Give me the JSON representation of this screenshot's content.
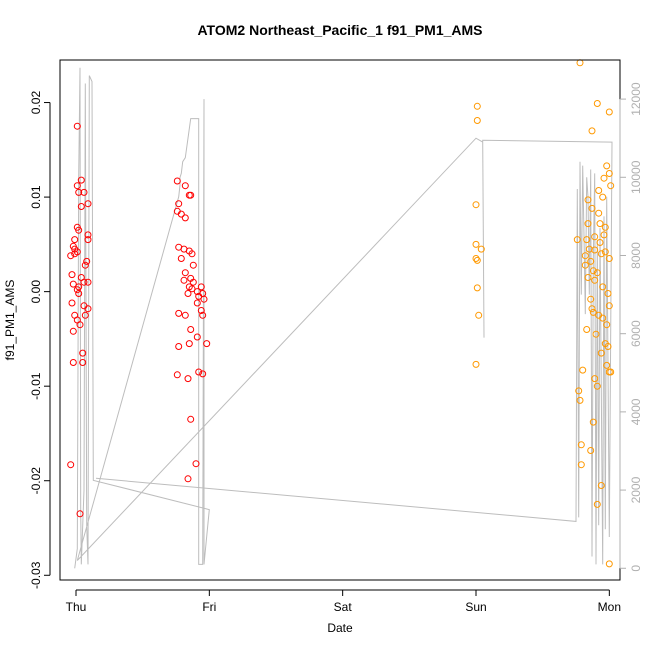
{
  "chart_data": {
    "type": "scatter",
    "title": "ATOM2 Northeast_Pacific_1 f91_PM1_AMS",
    "xlabel": "Date",
    "ylabel": "f91_PM1_AMS",
    "x_ticks": [
      "Thu",
      "Fri",
      "Sat",
      "Sun",
      "Mon"
    ],
    "y_ticks": [
      "-0.03",
      "-0.02",
      "-0.01",
      "0.00",
      "0.01",
      "0.02"
    ],
    "y2_ticks": [
      "0",
      "2000",
      "4000",
      "6000",
      "8000",
      "10000",
      "12000"
    ],
    "xlim": [
      -0.12,
      4.08
    ],
    "ylim": [
      -0.0305,
      0.0245
    ],
    "y2lim": [
      -300,
      13000
    ],
    "grid": false,
    "colors": {
      "red": "#ff0000",
      "orange": "#ff9900",
      "line": "#bdbdbd"
    },
    "series": [
      {
        "color": "#ff0000",
        "points": [
          [
            0.01,
            0.0175
          ],
          [
            0.01,
            0.0112
          ],
          [
            0.04,
            0.0118
          ],
          [
            0.06,
            0.0105
          ],
          [
            0.02,
            0.0105
          ],
          [
            0.09,
            0.0093
          ],
          [
            0.04,
            0.009
          ],
          [
            0.01,
            0.0068
          ],
          [
            0.02,
            0.0065
          ],
          [
            0.09,
            0.006
          ],
          [
            0.09,
            0.0055
          ],
          [
            -0.01,
            0.0055
          ],
          [
            -0.02,
            0.0048
          ],
          [
            -0.01,
            0.0045
          ],
          [
            0.01,
            0.0042
          ],
          [
            -0.01,
            0.004
          ],
          [
            -0.04,
            0.0038
          ],
          [
            0.08,
            0.0032
          ],
          [
            0.07,
            0.0028
          ],
          [
            -0.03,
            0.0018
          ],
          [
            0.04,
            0.0015
          ],
          [
            0.09,
            0.001
          ],
          [
            0.06,
            0.001
          ],
          [
            -0.02,
            0.0008
          ],
          [
            0.02,
            0.0005
          ],
          [
            0.01,
            0.0002
          ],
          [
            0.02,
            -0.0002
          ],
          [
            -0.03,
            -0.0012
          ],
          [
            0.06,
            -0.0015
          ],
          [
            0.09,
            -0.0018
          ],
          [
            0.07,
            -0.0025
          ],
          [
            -0.01,
            -0.0025
          ],
          [
            0.01,
            -0.003
          ],
          [
            0.03,
            -0.0035
          ],
          [
            -0.02,
            -0.0042
          ],
          [
            0.05,
            -0.0065
          ],
          [
            -0.02,
            -0.0075
          ],
          [
            0.05,
            -0.0075
          ],
          [
            -0.04,
            -0.0183
          ],
          [
            0.03,
            -0.0235
          ],
          [
            0.76,
            0.0117
          ],
          [
            0.82,
            0.0112
          ],
          [
            0.85,
            0.0102
          ],
          [
            0.86,
            0.0102
          ],
          [
            0.77,
            0.0093
          ],
          [
            0.76,
            0.0085
          ],
          [
            0.79,
            0.0082
          ],
          [
            0.82,
            0.0078
          ],
          [
            0.77,
            0.0047
          ],
          [
            0.81,
            0.0045
          ],
          [
            0.85,
            0.0043
          ],
          [
            0.87,
            0.004
          ],
          [
            0.79,
            0.0035
          ],
          [
            0.88,
            0.0028
          ],
          [
            0.82,
            0.002
          ],
          [
            0.86,
            0.0014
          ],
          [
            0.81,
            0.0012
          ],
          [
            0.88,
            0.001
          ],
          [
            0.85,
            0.0005
          ],
          [
            0.94,
            0.0005
          ],
          [
            0.87,
            0.0003
          ],
          [
            0.91,
            0.0
          ],
          [
            0.84,
            -0.0002
          ],
          [
            0.95,
            -0.0002
          ],
          [
            0.92,
            -0.0005
          ],
          [
            0.96,
            -0.0008
          ],
          [
            0.91,
            -0.0012
          ],
          [
            0.94,
            -0.002
          ],
          [
            0.77,
            -0.0023
          ],
          [
            0.82,
            -0.0025
          ],
          [
            0.95,
            -0.0025
          ],
          [
            0.86,
            -0.004
          ],
          [
            0.91,
            -0.0048
          ],
          [
            0.85,
            -0.0055
          ],
          [
            0.77,
            -0.0058
          ],
          [
            0.98,
            -0.0055
          ],
          [
            0.92,
            -0.0085
          ],
          [
            0.95,
            -0.0087
          ],
          [
            0.76,
            -0.0088
          ],
          [
            0.84,
            -0.0092
          ],
          [
            0.86,
            -0.0135
          ],
          [
            0.9,
            -0.0182
          ],
          [
            0.84,
            -0.0198
          ]
        ]
      },
      {
        "color": "#ff9900",
        "points": [
          [
            3.01,
            0.0196
          ],
          [
            3.01,
            0.0181
          ],
          [
            3.0,
            0.0092
          ],
          [
            3.0,
            0.005
          ],
          [
            3.04,
            0.0045
          ],
          [
            3.0,
            0.0035
          ],
          [
            3.01,
            0.0033
          ],
          [
            3.01,
            0.0004
          ],
          [
            3.02,
            -0.0025
          ],
          [
            3.0,
            -0.0077
          ],
          [
            3.78,
            0.0242
          ],
          [
            3.91,
            0.0199
          ],
          [
            4.0,
            0.019
          ],
          [
            3.87,
            0.017
          ],
          [
            3.98,
            0.0133
          ],
          [
            4.0,
            0.0125
          ],
          [
            3.96,
            0.012
          ],
          [
            4.01,
            0.0112
          ],
          [
            3.92,
            0.0107
          ],
          [
            3.95,
            0.01
          ],
          [
            3.84,
            0.0097
          ],
          [
            3.87,
            0.0088
          ],
          [
            3.92,
            0.0083
          ],
          [
            3.84,
            0.0072
          ],
          [
            3.93,
            0.0072
          ],
          [
            3.97,
            0.0068
          ],
          [
            3.89,
            0.0058
          ],
          [
            3.76,
            0.0055
          ],
          [
            3.83,
            0.0055
          ],
          [
            3.93,
            0.0052
          ],
          [
            3.96,
            0.006
          ],
          [
            3.85,
            0.0045
          ],
          [
            3.89,
            0.0044
          ],
          [
            3.97,
            0.0042
          ],
          [
            3.82,
            0.0038
          ],
          [
            3.94,
            0.004
          ],
          [
            4.0,
            0.0035
          ],
          [
            3.86,
            0.0032
          ],
          [
            3.82,
            0.0028
          ],
          [
            3.88,
            0.0022
          ],
          [
            3.91,
            0.002
          ],
          [
            3.84,
            0.0015
          ],
          [
            3.89,
            0.0012
          ],
          [
            3.95,
            0.0005
          ],
          [
            3.99,
            -0.0002
          ],
          [
            3.86,
            -0.0008
          ],
          [
            4.0,
            -0.0015
          ],
          [
            3.87,
            -0.0018
          ],
          [
            3.88,
            -0.0022
          ],
          [
            3.92,
            -0.0025
          ],
          [
            3.95,
            -0.0028
          ],
          [
            3.98,
            -0.0035
          ],
          [
            3.83,
            -0.004
          ],
          [
            3.9,
            -0.0045
          ],
          [
            3.97,
            -0.0055
          ],
          [
            3.99,
            -0.0058
          ],
          [
            3.94,
            -0.0065
          ],
          [
            3.98,
            -0.0078
          ],
          [
            4.0,
            -0.0085
          ],
          [
            4.01,
            -0.0085
          ],
          [
            3.8,
            -0.0083
          ],
          [
            3.89,
            -0.0092
          ],
          [
            3.91,
            -0.01
          ],
          [
            3.77,
            -0.0105
          ],
          [
            3.78,
            -0.0115
          ],
          [
            3.88,
            -0.0138
          ],
          [
            3.79,
            -0.0162
          ],
          [
            3.86,
            -0.0168
          ],
          [
            3.79,
            -0.0183
          ],
          [
            3.94,
            -0.0205
          ],
          [
            3.91,
            -0.0225
          ],
          [
            4.0,
            -0.0288
          ]
        ]
      }
    ],
    "secondary_line": {
      "color": "#bdbdbd",
      "points": [
        [
          -0.01,
          0
        ],
        [
          0.01,
          500
        ],
        [
          0.02,
          10000
        ],
        [
          0.03,
          12800
        ],
        [
          0.035,
          1500
        ],
        [
          0.04,
          100
        ],
        [
          0.06,
          2000
        ],
        [
          0.07,
          12400
        ],
        [
          0.08,
          1100
        ],
        [
          0.09,
          100
        ],
        [
          0.1,
          12600
        ],
        [
          0.12,
          12450
        ],
        [
          0.13,
          2250
        ],
        [
          1.0,
          1500
        ],
        [
          0.96,
          100
        ],
        [
          0.96,
          12000
        ],
        [
          0.95,
          100
        ],
        [
          0.92,
          100
        ],
        [
          0.92,
          11500
        ],
        [
          0.9,
          11500
        ],
        [
          0.86,
          11500
        ],
        [
          0.84,
          11000
        ],
        [
          0.82,
          10500
        ],
        [
          0.8,
          10400
        ],
        [
          0.79,
          10100
        ],
        [
          0.78,
          10000
        ],
        [
          0.78,
          9800
        ],
        [
          0.77,
          9500
        ],
        [
          0.01,
          200
        ],
        [
          3.0,
          11000
        ],
        [
          3.05,
          10900
        ],
        [
          3.06,
          5900
        ],
        [
          3.05,
          10950
        ],
        [
          4.02,
          10900
        ],
        [
          4.0,
          800
        ],
        [
          3.98,
          9500
        ],
        [
          3.97,
          1000
        ],
        [
          3.96,
          9000
        ],
        [
          3.95,
          100
        ],
        [
          3.93,
          8700
        ],
        [
          3.92,
          1100
        ],
        [
          3.91,
          8400
        ],
        [
          3.9,
          100
        ],
        [
          3.89,
          10100
        ],
        [
          3.88,
          7900
        ],
        [
          3.87,
          300
        ],
        [
          3.86,
          10200
        ],
        [
          3.85,
          7000
        ],
        [
          3.84,
          9500
        ],
        [
          3.83,
          10000
        ],
        [
          3.82,
          6500
        ],
        [
          3.81,
          8500
        ],
        [
          3.8,
          10300
        ],
        [
          3.79,
          7000
        ],
        [
          3.78,
          10400
        ],
        [
          3.77,
          1300
        ],
        [
          3.76,
          9700
        ],
        [
          3.75,
          1200
        ],
        [
          0.15,
          2300
        ]
      ]
    }
  }
}
